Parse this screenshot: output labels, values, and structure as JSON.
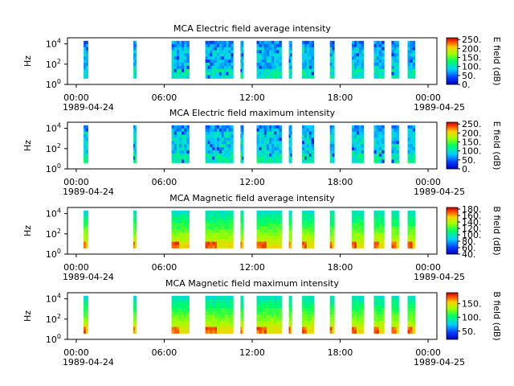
{
  "figure": {
    "x_ticks": [
      "00:00",
      "06:00",
      "12:00",
      "18:00",
      "00:00"
    ],
    "x_ticks_hours": [
      0,
      6,
      12,
      18,
      24
    ],
    "date_start": "1989-04-24",
    "date_end": "1989-04-25",
    "xlim_hours": [
      -0.6,
      24.6
    ]
  },
  "chart_data": [
    {
      "type": "heatmap",
      "title": "MCA  Electric field average intensity",
      "ylabel": "Hz",
      "yscale": "log",
      "ylim": [
        1,
        40000
      ],
      "y_tick_labels": [
        {
          "base": "10",
          "exp": "0"
        },
        {
          "base": "10",
          "exp": "2"
        },
        {
          "base": "10",
          "exp": "4"
        }
      ],
      "colorbar_label": "E field (dB)",
      "colorbar_ticks": [
        "0.",
        "50.",
        "100.",
        "150.",
        "200.",
        "250."
      ],
      "colorbar_range": [
        0,
        260
      ],
      "data_segments_hours": [
        [
          0.5,
          0.8
        ],
        [
          3.9,
          4.1
        ],
        [
          6.5,
          7.7
        ],
        [
          8.8,
          10.7
        ],
        [
          11.2,
          11.4
        ],
        [
          12.3,
          14.0
        ],
        [
          14.5,
          14.7
        ],
        [
          15.4,
          16.2
        ],
        [
          17.3,
          17.6
        ],
        [
          18.8,
          19.6
        ],
        [
          20.3,
          21.0
        ],
        [
          21.5,
          22.0
        ],
        [
          22.6,
          23.1
        ]
      ],
      "low_band": "blue-cyan",
      "dominant_band": "cyan-green"
    },
    {
      "type": "heatmap",
      "title": "MCA  Electric field maximum intensity",
      "ylabel": "Hz",
      "yscale": "log",
      "ylim": [
        1,
        40000
      ],
      "y_tick_labels": [
        {
          "base": "10",
          "exp": "0"
        },
        {
          "base": "10",
          "exp": "2"
        },
        {
          "base": "10",
          "exp": "4"
        }
      ],
      "colorbar_label": "E field (dB)",
      "colorbar_ticks": [
        "0.",
        "50.",
        "100.",
        "150.",
        "200.",
        "250."
      ],
      "colorbar_range": [
        0,
        260
      ],
      "data_segments_hours": [
        [
          0.5,
          0.8
        ],
        [
          3.9,
          4.1
        ],
        [
          6.5,
          7.7
        ],
        [
          8.8,
          10.7
        ],
        [
          11.2,
          11.4
        ],
        [
          12.3,
          14.0
        ],
        [
          14.5,
          14.7
        ],
        [
          15.4,
          16.2
        ],
        [
          17.3,
          17.6
        ],
        [
          18.8,
          19.6
        ],
        [
          20.3,
          21.0
        ],
        [
          21.5,
          22.0
        ],
        [
          22.6,
          23.1
        ]
      ],
      "low_band": "blue-cyan",
      "dominant_band": "cyan-green"
    },
    {
      "type": "heatmap",
      "title": "MCA  Magnetic field average intensity",
      "ylabel": "Hz",
      "yscale": "log",
      "ylim": [
        1,
        40000
      ],
      "y_tick_labels": [
        {
          "base": "10",
          "exp": "0"
        },
        {
          "base": "10",
          "exp": "2"
        },
        {
          "base": "10",
          "exp": "4"
        }
      ],
      "colorbar_label": "B field (dB)",
      "colorbar_ticks": [
        "40.",
        "60.",
        "80.",
        "100.",
        "120.",
        "140.",
        "160.",
        "180."
      ],
      "colorbar_range": [
        40,
        185
      ],
      "data_segments_hours": [
        [
          0.5,
          0.8
        ],
        [
          3.9,
          4.1
        ],
        [
          6.5,
          7.7
        ],
        [
          8.8,
          10.7
        ],
        [
          11.2,
          11.4
        ],
        [
          12.3,
          14.0
        ],
        [
          14.5,
          14.7
        ],
        [
          15.4,
          16.2
        ],
        [
          17.3,
          17.6
        ],
        [
          18.8,
          19.6
        ],
        [
          20.3,
          21.0
        ],
        [
          21.5,
          22.0
        ],
        [
          22.6,
          23.1
        ]
      ],
      "low_band": "yellow-orange",
      "dominant_band": "green-cyan"
    },
    {
      "type": "heatmap",
      "title": "MCA  Magnetic field maximum intensity",
      "ylabel": "Hz",
      "yscale": "log",
      "ylim": [
        1,
        40000
      ],
      "y_tick_labels": [
        {
          "base": "10",
          "exp": "0"
        },
        {
          "base": "10",
          "exp": "2"
        },
        {
          "base": "10",
          "exp": "4"
        }
      ],
      "colorbar_label": "B field (dB)",
      "colorbar_ticks": [
        "50.",
        "100.",
        "150."
      ],
      "colorbar_range": [
        20,
        190
      ],
      "data_segments_hours": [
        [
          0.5,
          0.8
        ],
        [
          3.9,
          4.1
        ],
        [
          6.5,
          7.7
        ],
        [
          8.8,
          10.7
        ],
        [
          11.2,
          11.4
        ],
        [
          12.3,
          14.0
        ],
        [
          14.5,
          14.7
        ],
        [
          15.4,
          16.2
        ],
        [
          17.3,
          17.6
        ],
        [
          18.8,
          19.6
        ],
        [
          20.3,
          21.0
        ],
        [
          21.5,
          22.0
        ],
        [
          22.6,
          23.1
        ]
      ],
      "low_band": "yellow-orange",
      "dominant_band": "green-cyan"
    }
  ]
}
